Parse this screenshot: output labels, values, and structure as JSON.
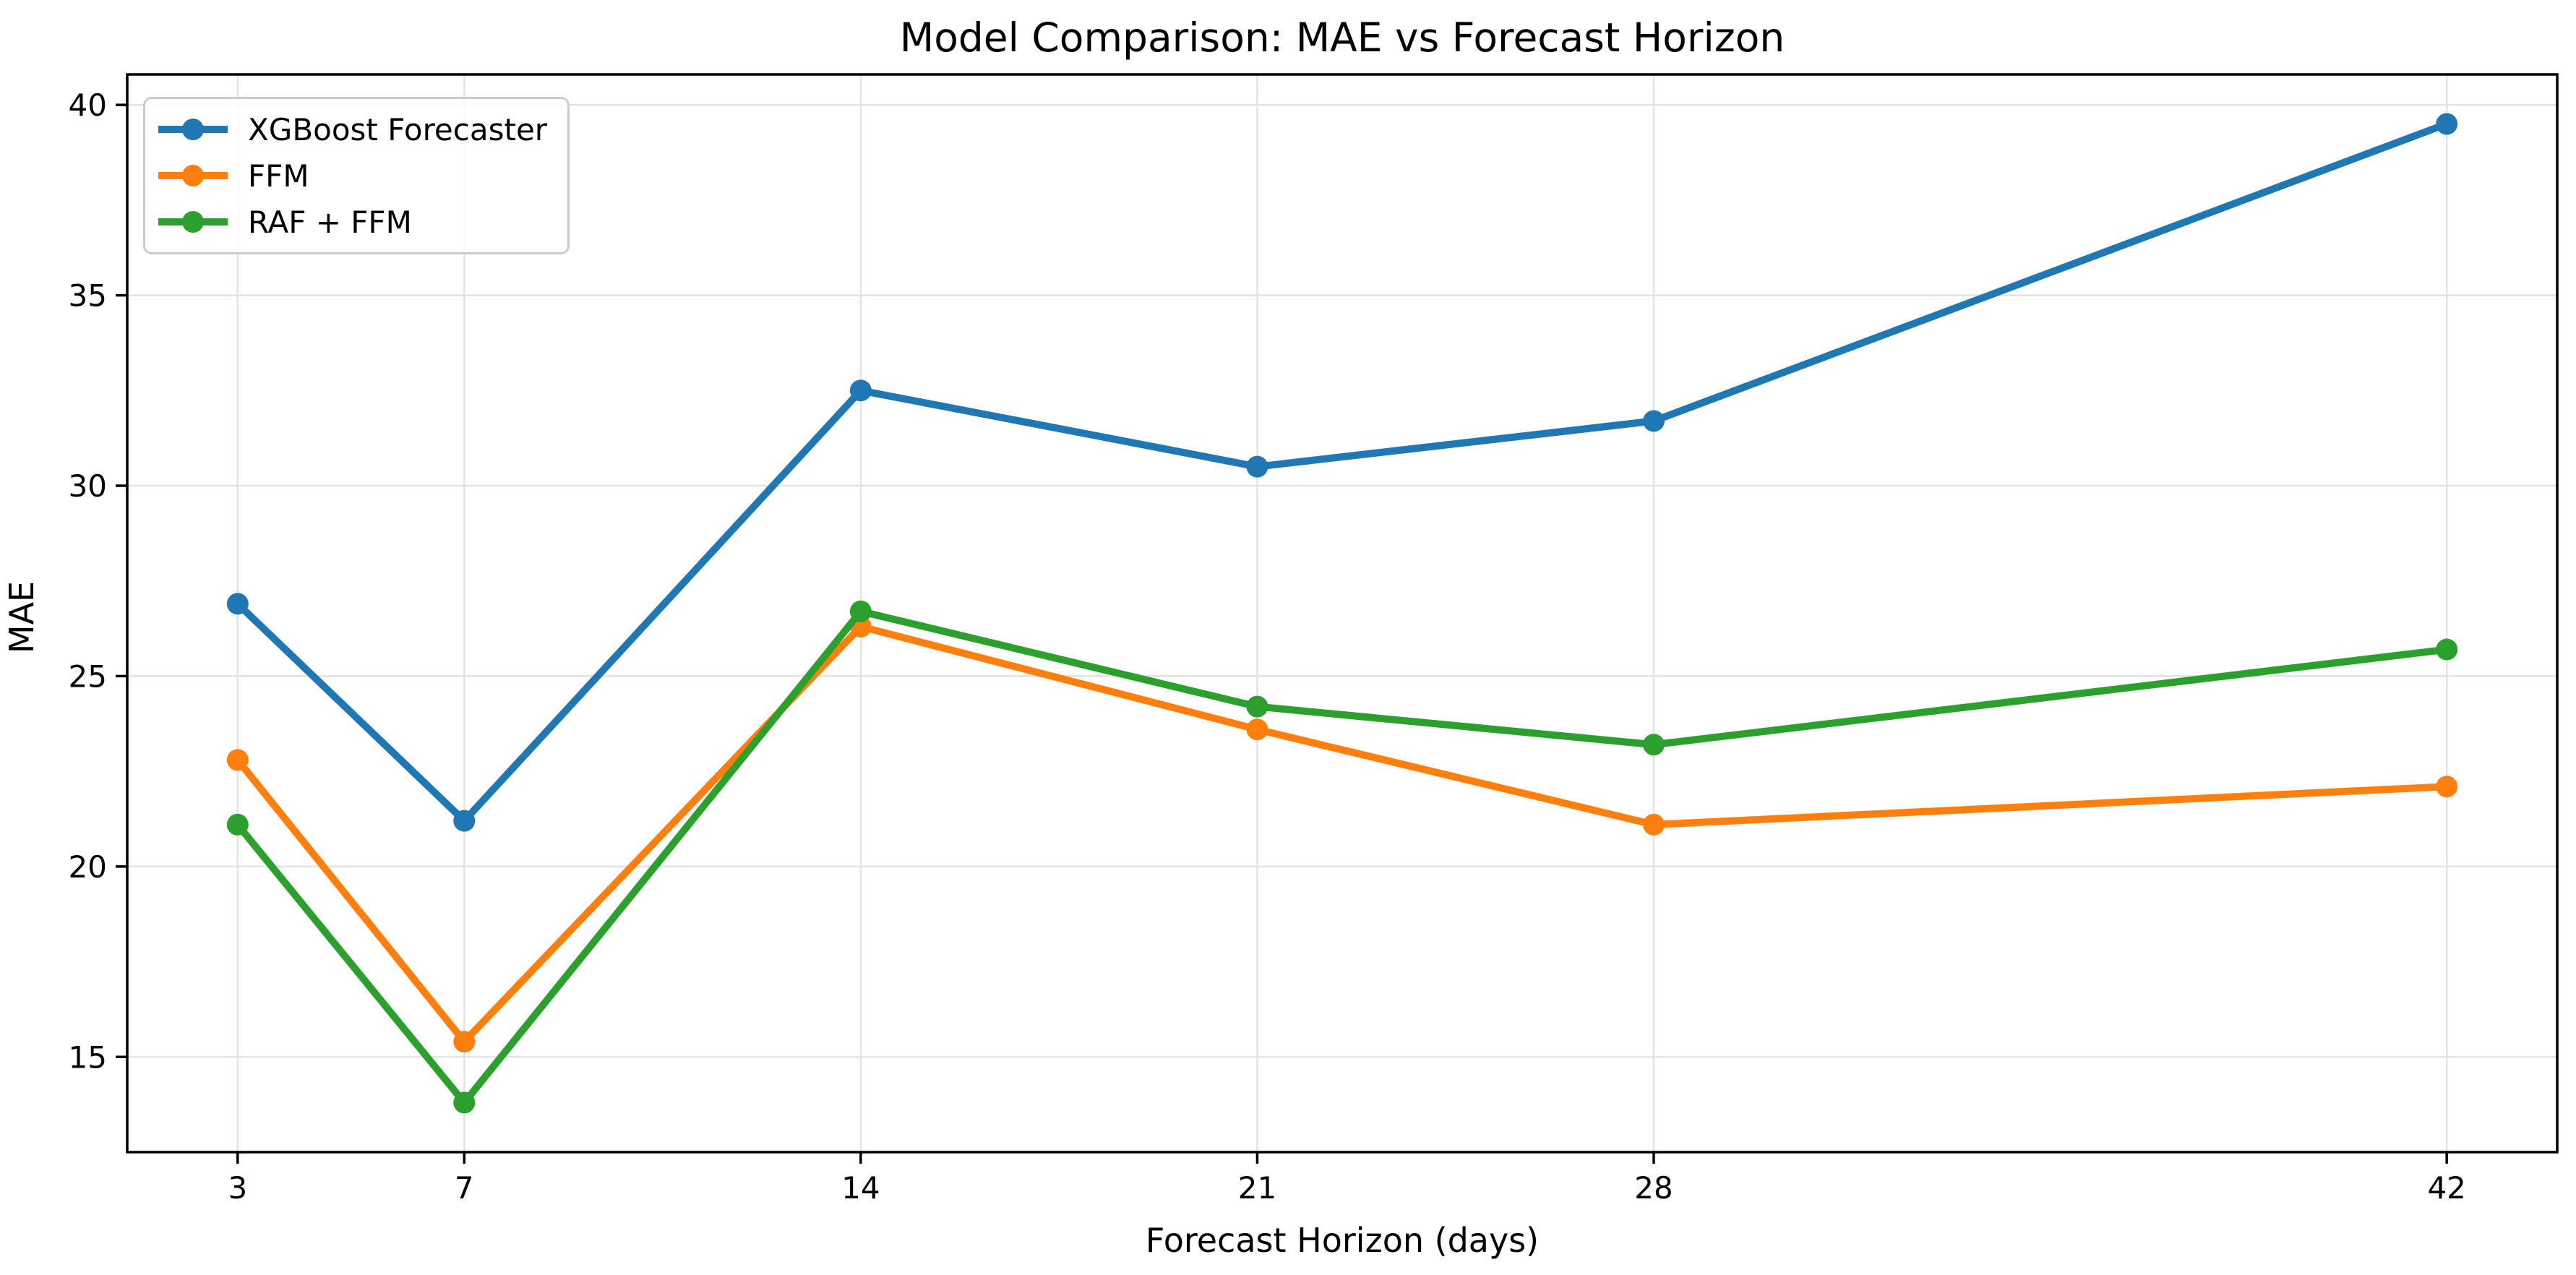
{
  "figure": {
    "background": "#ffffff"
  },
  "chart_data": {
    "type": "line",
    "title": "Model Comparison: MAE vs Forecast Horizon",
    "xlabel": "Forecast Horizon (days)",
    "ylabel": "MAE",
    "x": [
      3,
      7,
      14,
      21,
      28,
      42
    ],
    "x_tick_labels": [
      "3",
      "7",
      "14",
      "21",
      "28",
      "42"
    ],
    "y_ticks": [
      15,
      20,
      25,
      30,
      35,
      40
    ],
    "xlim": [
      1.05,
      43.95
    ],
    "ylim": [
      12.5,
      40.8
    ],
    "grid": true,
    "legend_position": "upper left",
    "series": [
      {
        "name": "XGBoost Forecaster",
        "color": "#1f77b4",
        "values": [
          26.9,
          21.2,
          32.5,
          30.5,
          31.7,
          39.5
        ]
      },
      {
        "name": "FFM",
        "color": "#ff7f0e",
        "values": [
          22.8,
          15.4,
          26.3,
          23.6,
          21.1,
          22.1
        ]
      },
      {
        "name": "RAF + FFM",
        "color": "#2ca02c",
        "values": [
          21.1,
          13.8,
          26.7,
          24.2,
          23.2,
          25.7
        ]
      }
    ],
    "styles": {
      "grid_color": "#e3e3e3",
      "axis_color": "#000000",
      "marker": "circle",
      "line_width": 10,
      "marker_radius": 15
    }
  }
}
